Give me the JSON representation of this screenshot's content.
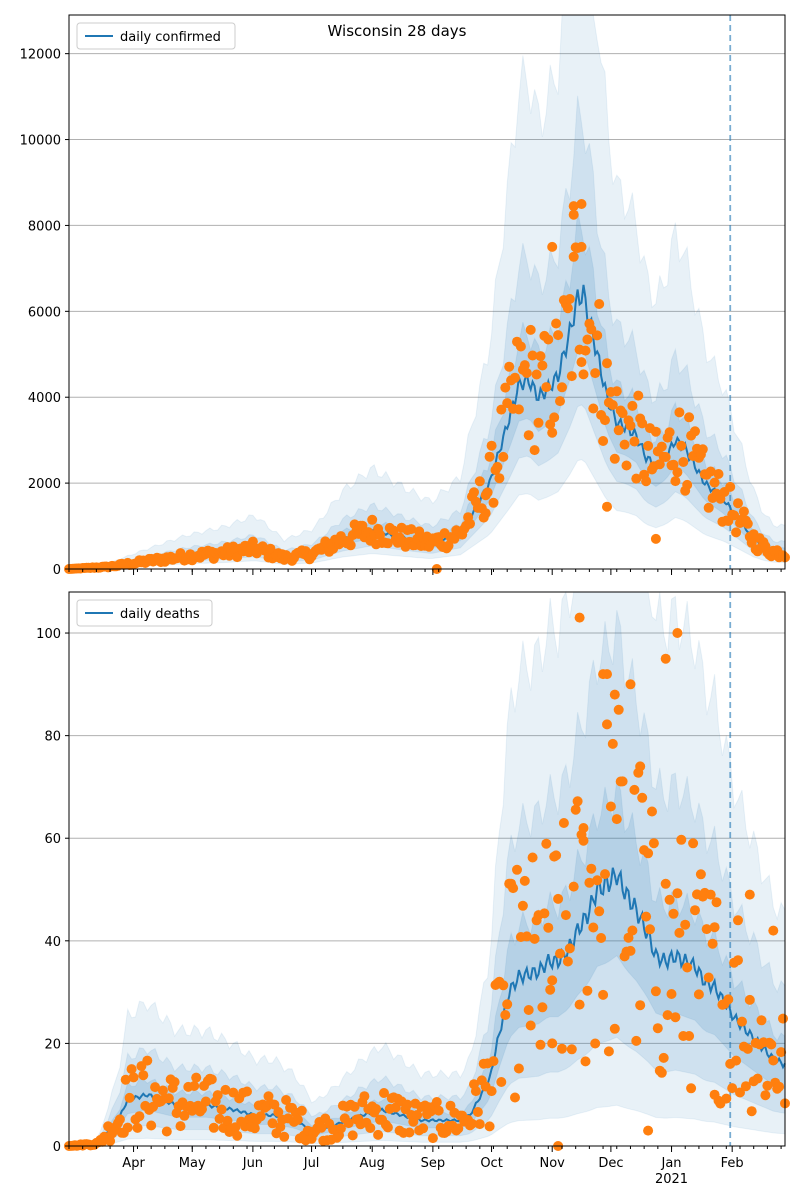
{
  "figure": {
    "title": "Wisconsin 28 days"
  },
  "x_ticks": [
    {
      "day": 33,
      "label": "Apr"
    },
    {
      "day": 63,
      "label": "May"
    },
    {
      "day": 94,
      "label": "Jun"
    },
    {
      "day": 124,
      "label": "Jul"
    },
    {
      "day": 155,
      "label": "Aug"
    },
    {
      "day": 186,
      "label": "Sep"
    },
    {
      "day": 216,
      "label": "Oct"
    },
    {
      "day": 247,
      "label": "Nov"
    },
    {
      "day": 277,
      "label": "Dec"
    },
    {
      "day": 308,
      "label": "Jan"
    },
    {
      "day": 339,
      "label": "Feb"
    }
  ],
  "x_year_label": "2021",
  "colors": {
    "line": "#1f77b4",
    "points": "#ff7f0e",
    "band": "#1f77b4",
    "grid": "#b0b0b0"
  },
  "chart_data": [
    {
      "type": "line",
      "title": "Wisconsin 28 days",
      "legend": "daily confirmed",
      "legend_position": "top-left",
      "x_unit": "date",
      "x_start": "2020-02-28",
      "x_end": "2021-02-28",
      "cutoff_date": "2021-01-31",
      "ylim": [
        0,
        12900
      ],
      "yticks": [
        0,
        2000,
        4000,
        6000,
        8000,
        10000,
        12000
      ],
      "grid": true,
      "median_knots": [
        [
          0,
          0
        ],
        [
          20,
          50
        ],
        [
          40,
          180
        ],
        [
          60,
          300
        ],
        [
          80,
          380
        ],
        [
          95,
          480
        ],
        [
          110,
          260
        ],
        [
          125,
          360
        ],
        [
          140,
          700
        ],
        [
          155,
          900
        ],
        [
          170,
          740
        ],
        [
          185,
          600
        ],
        [
          200,
          820
        ],
        [
          215,
          2000
        ],
        [
          225,
          3500
        ],
        [
          230,
          4300
        ],
        [
          235,
          4400
        ],
        [
          240,
          4000
        ],
        [
          245,
          4200
        ],
        [
          250,
          4500
        ],
        [
          256,
          5500
        ],
        [
          260,
          6300
        ],
        [
          263,
          6400
        ],
        [
          265,
          6000
        ],
        [
          270,
          5000
        ],
        [
          275,
          4000
        ],
        [
          280,
          3400
        ],
        [
          285,
          3300
        ],
        [
          290,
          3100
        ],
        [
          295,
          2600
        ],
        [
          300,
          2400
        ],
        [
          305,
          2600
        ],
        [
          310,
          3000
        ],
        [
          315,
          2800
        ],
        [
          320,
          2400
        ],
        [
          325,
          2000
        ],
        [
          330,
          1800
        ],
        [
          335,
          1600
        ],
        [
          340,
          1300
        ],
        [
          345,
          1000
        ],
        [
          350,
          700
        ],
        [
          355,
          500
        ],
        [
          360,
          400
        ],
        [
          365,
          380
        ]
      ],
      "band_inner_upper_ratio": 1.25,
      "band_inner_lower_ratio": 0.8,
      "band_outer_upper_ratio": 1.65,
      "band_outer_lower_ratio": 0.6,
      "band_widest_upper_ratio": 2.6,
      "band_widest_lower_ratio": 0.4,
      "point_series_name": "observed",
      "point_noise": 0.22,
      "point_outliers": [
        [
          188,
          0
        ],
        [
          213,
          1300
        ],
        [
          262,
          8500
        ],
        [
          258,
          8250
        ],
        [
          258,
          8450
        ],
        [
          247,
          7500
        ],
        [
          262,
          7500
        ],
        [
          275,
          1450
        ],
        [
          300,
          700
        ]
      ]
    },
    {
      "type": "line",
      "legend": "daily deaths",
      "legend_position": "top-left",
      "x_unit": "date",
      "x_start": "2020-02-28",
      "x_end": "2021-02-28",
      "cutoff_date": "2021-01-31",
      "ylim": [
        0,
        108
      ],
      "yticks": [
        0,
        20,
        40,
        60,
        80,
        100
      ],
      "grid": true,
      "median_knots": [
        [
          0,
          0
        ],
        [
          15,
          0.5
        ],
        [
          25,
          5
        ],
        [
          30,
          9
        ],
        [
          40,
          10
        ],
        [
          55,
          8
        ],
        [
          70,
          8
        ],
        [
          85,
          7
        ],
        [
          95,
          6
        ],
        [
          105,
          6
        ],
        [
          115,
          5
        ],
        [
          125,
          3
        ],
        [
          135,
          4
        ],
        [
          150,
          6
        ],
        [
          160,
          7
        ],
        [
          170,
          6
        ],
        [
          180,
          5
        ],
        [
          200,
          5
        ],
        [
          205,
          6
        ],
        [
          215,
          13
        ],
        [
          220,
          22
        ],
        [
          225,
          30
        ],
        [
          230,
          33
        ],
        [
          240,
          34
        ],
        [
          245,
          36
        ],
        [
          250,
          36
        ],
        [
          255,
          38
        ],
        [
          260,
          42
        ],
        [
          265,
          45
        ],
        [
          270,
          50
        ],
        [
          275,
          51
        ],
        [
          280,
          53
        ],
        [
          285,
          49
        ],
        [
          290,
          46
        ],
        [
          295,
          42
        ],
        [
          300,
          37
        ],
        [
          305,
          36
        ],
        [
          310,
          37
        ],
        [
          315,
          36
        ],
        [
          320,
          35
        ],
        [
          325,
          32
        ],
        [
          330,
          31
        ],
        [
          335,
          28
        ],
        [
          340,
          25
        ],
        [
          345,
          23
        ],
        [
          350,
          21
        ],
        [
          355,
          19
        ],
        [
          360,
          17
        ],
        [
          365,
          16
        ]
      ],
      "band_inner_upper_ratio": 1.3,
      "band_inner_lower_ratio": 0.7,
      "band_outer_upper_ratio": 1.9,
      "band_outer_lower_ratio": 0.4,
      "band_widest_upper_ratio": 2.8,
      "band_widest_lower_ratio": 0.15,
      "point_series_name": "observed",
      "point_noise": 0.45,
      "point_outliers": [
        [
          261,
          103
        ],
        [
          273,
          92
        ],
        [
          275,
          92
        ],
        [
          279,
          88
        ],
        [
          287,
          90
        ],
        [
          311,
          100
        ],
        [
          305,
          95
        ],
        [
          292,
          74
        ],
        [
          250,
          0
        ],
        [
          263,
          62
        ],
        [
          247,
          20
        ],
        [
          296,
          3
        ],
        [
          330,
          10
        ],
        [
          342,
          44
        ],
        [
          348,
          49
        ],
        [
          360,
          42
        ]
      ]
    }
  ]
}
